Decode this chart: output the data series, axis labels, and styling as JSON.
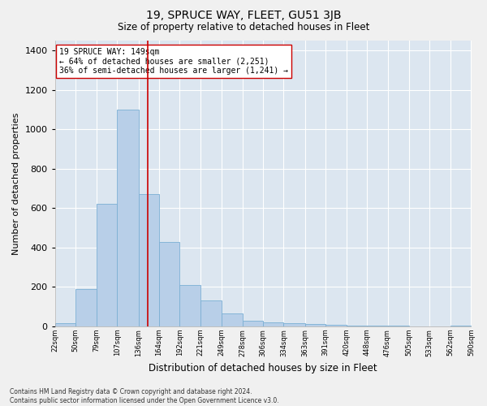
{
  "title": "19, SPRUCE WAY, FLEET, GU51 3JB",
  "subtitle": "Size of property relative to detached houses in Fleet",
  "xlabel": "Distribution of detached houses by size in Fleet",
  "ylabel": "Number of detached properties",
  "footnote": "Contains HM Land Registry data © Crown copyright and database right 2024.\nContains public sector information licensed under the Open Government Licence v3.0.",
  "bar_color": "#b8cfe8",
  "bar_edge_color": "#7bafd4",
  "background_color": "#dce6f0",
  "grid_color": "#ffffff",
  "fig_background": "#f0f0f0",
  "vline_x": 149,
  "vline_color": "#cc0000",
  "annotation_text": "19 SPRUCE WAY: 149sqm\n← 64% of detached houses are smaller (2,251)\n36% of semi-detached houses are larger (1,241) →",
  "annotation_box_color": "#ffffff",
  "annotation_box_edge": "#cc0000",
  "bins": [
    22,
    50,
    79,
    107,
    136,
    164,
    192,
    221,
    249,
    278,
    306,
    334,
    363,
    391,
    420,
    448,
    476,
    505,
    533,
    562,
    590
  ],
  "values": [
    15,
    190,
    620,
    1100,
    670,
    430,
    210,
    130,
    65,
    28,
    22,
    15,
    12,
    8,
    5,
    3,
    2,
    0,
    0,
    3
  ],
  "ylim": [
    0,
    1450
  ],
  "yticks": [
    0,
    200,
    400,
    600,
    800,
    1000,
    1200,
    1400
  ],
  "title_fontsize": 10,
  "subtitle_fontsize": 8.5,
  "ylabel_fontsize": 8,
  "xlabel_fontsize": 8.5,
  "footnote_fontsize": 5.5,
  "annotation_fontsize": 7,
  "ytick_fontsize": 8,
  "xtick_fontsize": 6
}
